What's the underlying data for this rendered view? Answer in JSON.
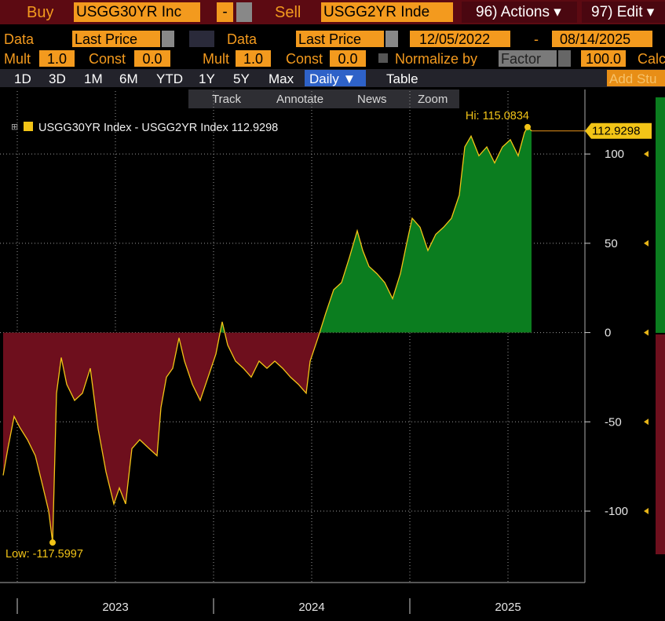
{
  "toolbar": {
    "row1": {
      "buy": "Buy",
      "security1": "USGG30YR Inc",
      "operator": "-",
      "sell": "Sell",
      "security2": "USGG2YR Inde",
      "actions": "96) Actions ▾",
      "edit": "97) Edit ▾"
    },
    "row2": {
      "data1": "Data",
      "field1": "Last Price",
      "data2": "Data",
      "field2": "Last Price",
      "start_date": "12/05/2022",
      "dash": "-",
      "end_date": "08/14/2025"
    },
    "row3": {
      "mult1": "Mult",
      "mult1_value": "1.0",
      "const1": "Const",
      "const1_value": "0.0",
      "mult2": "Mult",
      "mult2_value": "1.0",
      "const2": "Const",
      "const2_value": "0.0",
      "normalize": "Normalize by",
      "factor": "Factor",
      "factor_value": "100.0",
      "calc": "Calc"
    },
    "row4": {
      "tabs": [
        "1D",
        "3D",
        "1M",
        "6M",
        "YTD",
        "1Y",
        "5Y",
        "Max"
      ],
      "period": "Daily ▼",
      "table": "Table",
      "add_study": "Add Stu"
    },
    "row5": {
      "tools": [
        "Track",
        "Annotate",
        "News",
        "Zoom"
      ]
    }
  },
  "chart_data": {
    "type": "area",
    "grid": true,
    "series": [
      {
        "name": "USGG30YR Index - USGG2YR Index",
        "last_value": 112.9298,
        "color": "#f2c417",
        "fill_positive": "#0b7d1f",
        "fill_negative": "#6e0f1d",
        "x": [
          2022.928,
          2022.952,
          2022.984,
          2023.012,
          2023.052,
          2023.092,
          2023.132,
          2023.16,
          2023.18,
          2023.2,
          2023.224,
          2023.252,
          2023.292,
          2023.332,
          2023.372,
          2023.412,
          2023.452,
          2023.492,
          2023.52,
          2023.552,
          2023.584,
          2023.624,
          2023.672,
          2023.712,
          2023.732,
          2023.76,
          2023.792,
          2023.824,
          2023.852,
          2023.892,
          2023.932,
          2023.972,
          2024.012,
          2024.044,
          2024.072,
          2024.112,
          2024.152,
          2024.192,
          2024.232,
          2024.272,
          2024.312,
          2024.352,
          2024.392,
          2024.432,
          2024.472,
          2024.492,
          2024.532,
          2024.572,
          2024.612,
          2024.652,
          2024.692,
          2024.732,
          2024.76,
          2024.792,
          2024.832,
          2024.872,
          2024.912,
          2024.952,
          2024.984,
          2025.012,
          2025.052,
          2025.092,
          2025.132,
          2025.172,
          2025.212,
          2025.252,
          2025.28,
          2025.312,
          2025.352,
          2025.392,
          2025.432,
          2025.472,
          2025.512,
          2025.552,
          2025.584,
          2025.6,
          2025.62
        ],
        "values": [
          -80,
          -65,
          -47,
          -53,
          -60,
          -69,
          -87,
          -100,
          -117.5997,
          -34,
          -14,
          -29,
          -38,
          -34,
          -20,
          -54,
          -78,
          -96,
          -87,
          -96,
          -65,
          -60,
          -65,
          -69,
          -42,
          -25,
          -20,
          -3,
          -16,
          -29,
          -38,
          -25,
          -12,
          6,
          -7,
          -16,
          -20,
          -25,
          -16,
          -20,
          -16,
          -20,
          -25,
          -29,
          -34,
          -16,
          -3,
          11,
          24,
          28,
          42,
          57,
          46,
          37,
          33,
          28,
          19,
          33,
          50,
          64,
          59,
          46,
          55,
          59,
          64,
          77,
          104,
          110,
          99,
          104,
          95,
          104,
          108,
          99,
          112,
          115.0834,
          112.9298
        ]
      }
    ],
    "xlim": [
      2022.912,
      2025.892
    ],
    "xticks": [
      {
        "value": 2023.5,
        "label": "2023"
      },
      {
        "value": 2024.5,
        "label": "2024"
      },
      {
        "value": 2025.5,
        "label": "2025"
      }
    ],
    "xminor_ticks": [
      2023,
      2024,
      2025
    ],
    "ylim": [
      -140,
      137
    ],
    "yticks": [
      -100,
      -50,
      0,
      50,
      100
    ],
    "annotations": [
      {
        "text": "Hi: 115.0834",
        "x": 2025.6,
        "value": 115.0834
      },
      {
        "text": "Low: -117.5997",
        "x": 2023.18,
        "value": -117.5997
      }
    ]
  }
}
